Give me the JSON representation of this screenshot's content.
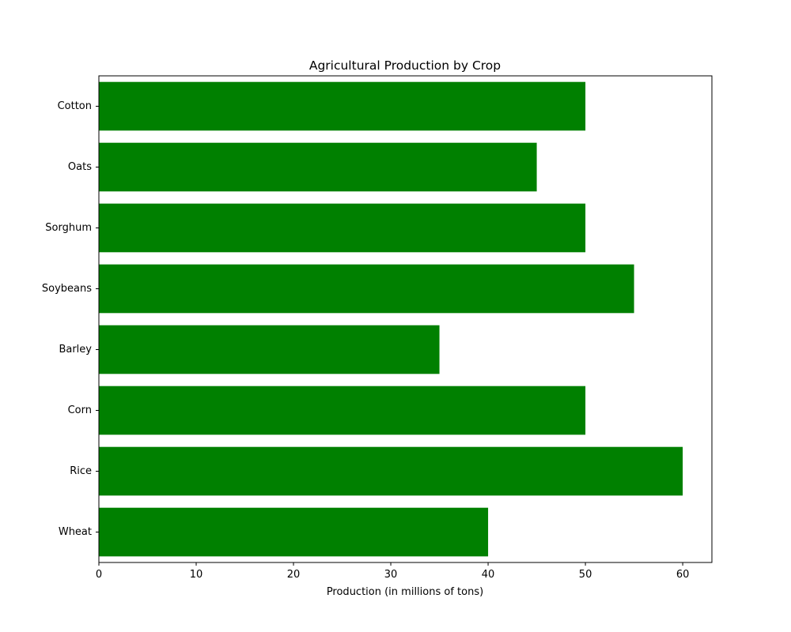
{
  "chart_data": {
    "type": "bar",
    "orientation": "horizontal",
    "title": "Agricultural Production by Crop",
    "xlabel": "Production (in millions of tons)",
    "ylabel": "",
    "categories": [
      "Wheat",
      "Rice",
      "Corn",
      "Barley",
      "Soybeans",
      "Sorghum",
      "Oats",
      "Cotton"
    ],
    "values": [
      40,
      60,
      50,
      35,
      55,
      50,
      45,
      50
    ],
    "xlim": [
      0,
      63
    ],
    "xticks": [
      "0",
      "10",
      "20",
      "30",
      "40",
      "50",
      "60"
    ],
    "bar_color": "#008000",
    "grid": false,
    "legend": "none"
  }
}
